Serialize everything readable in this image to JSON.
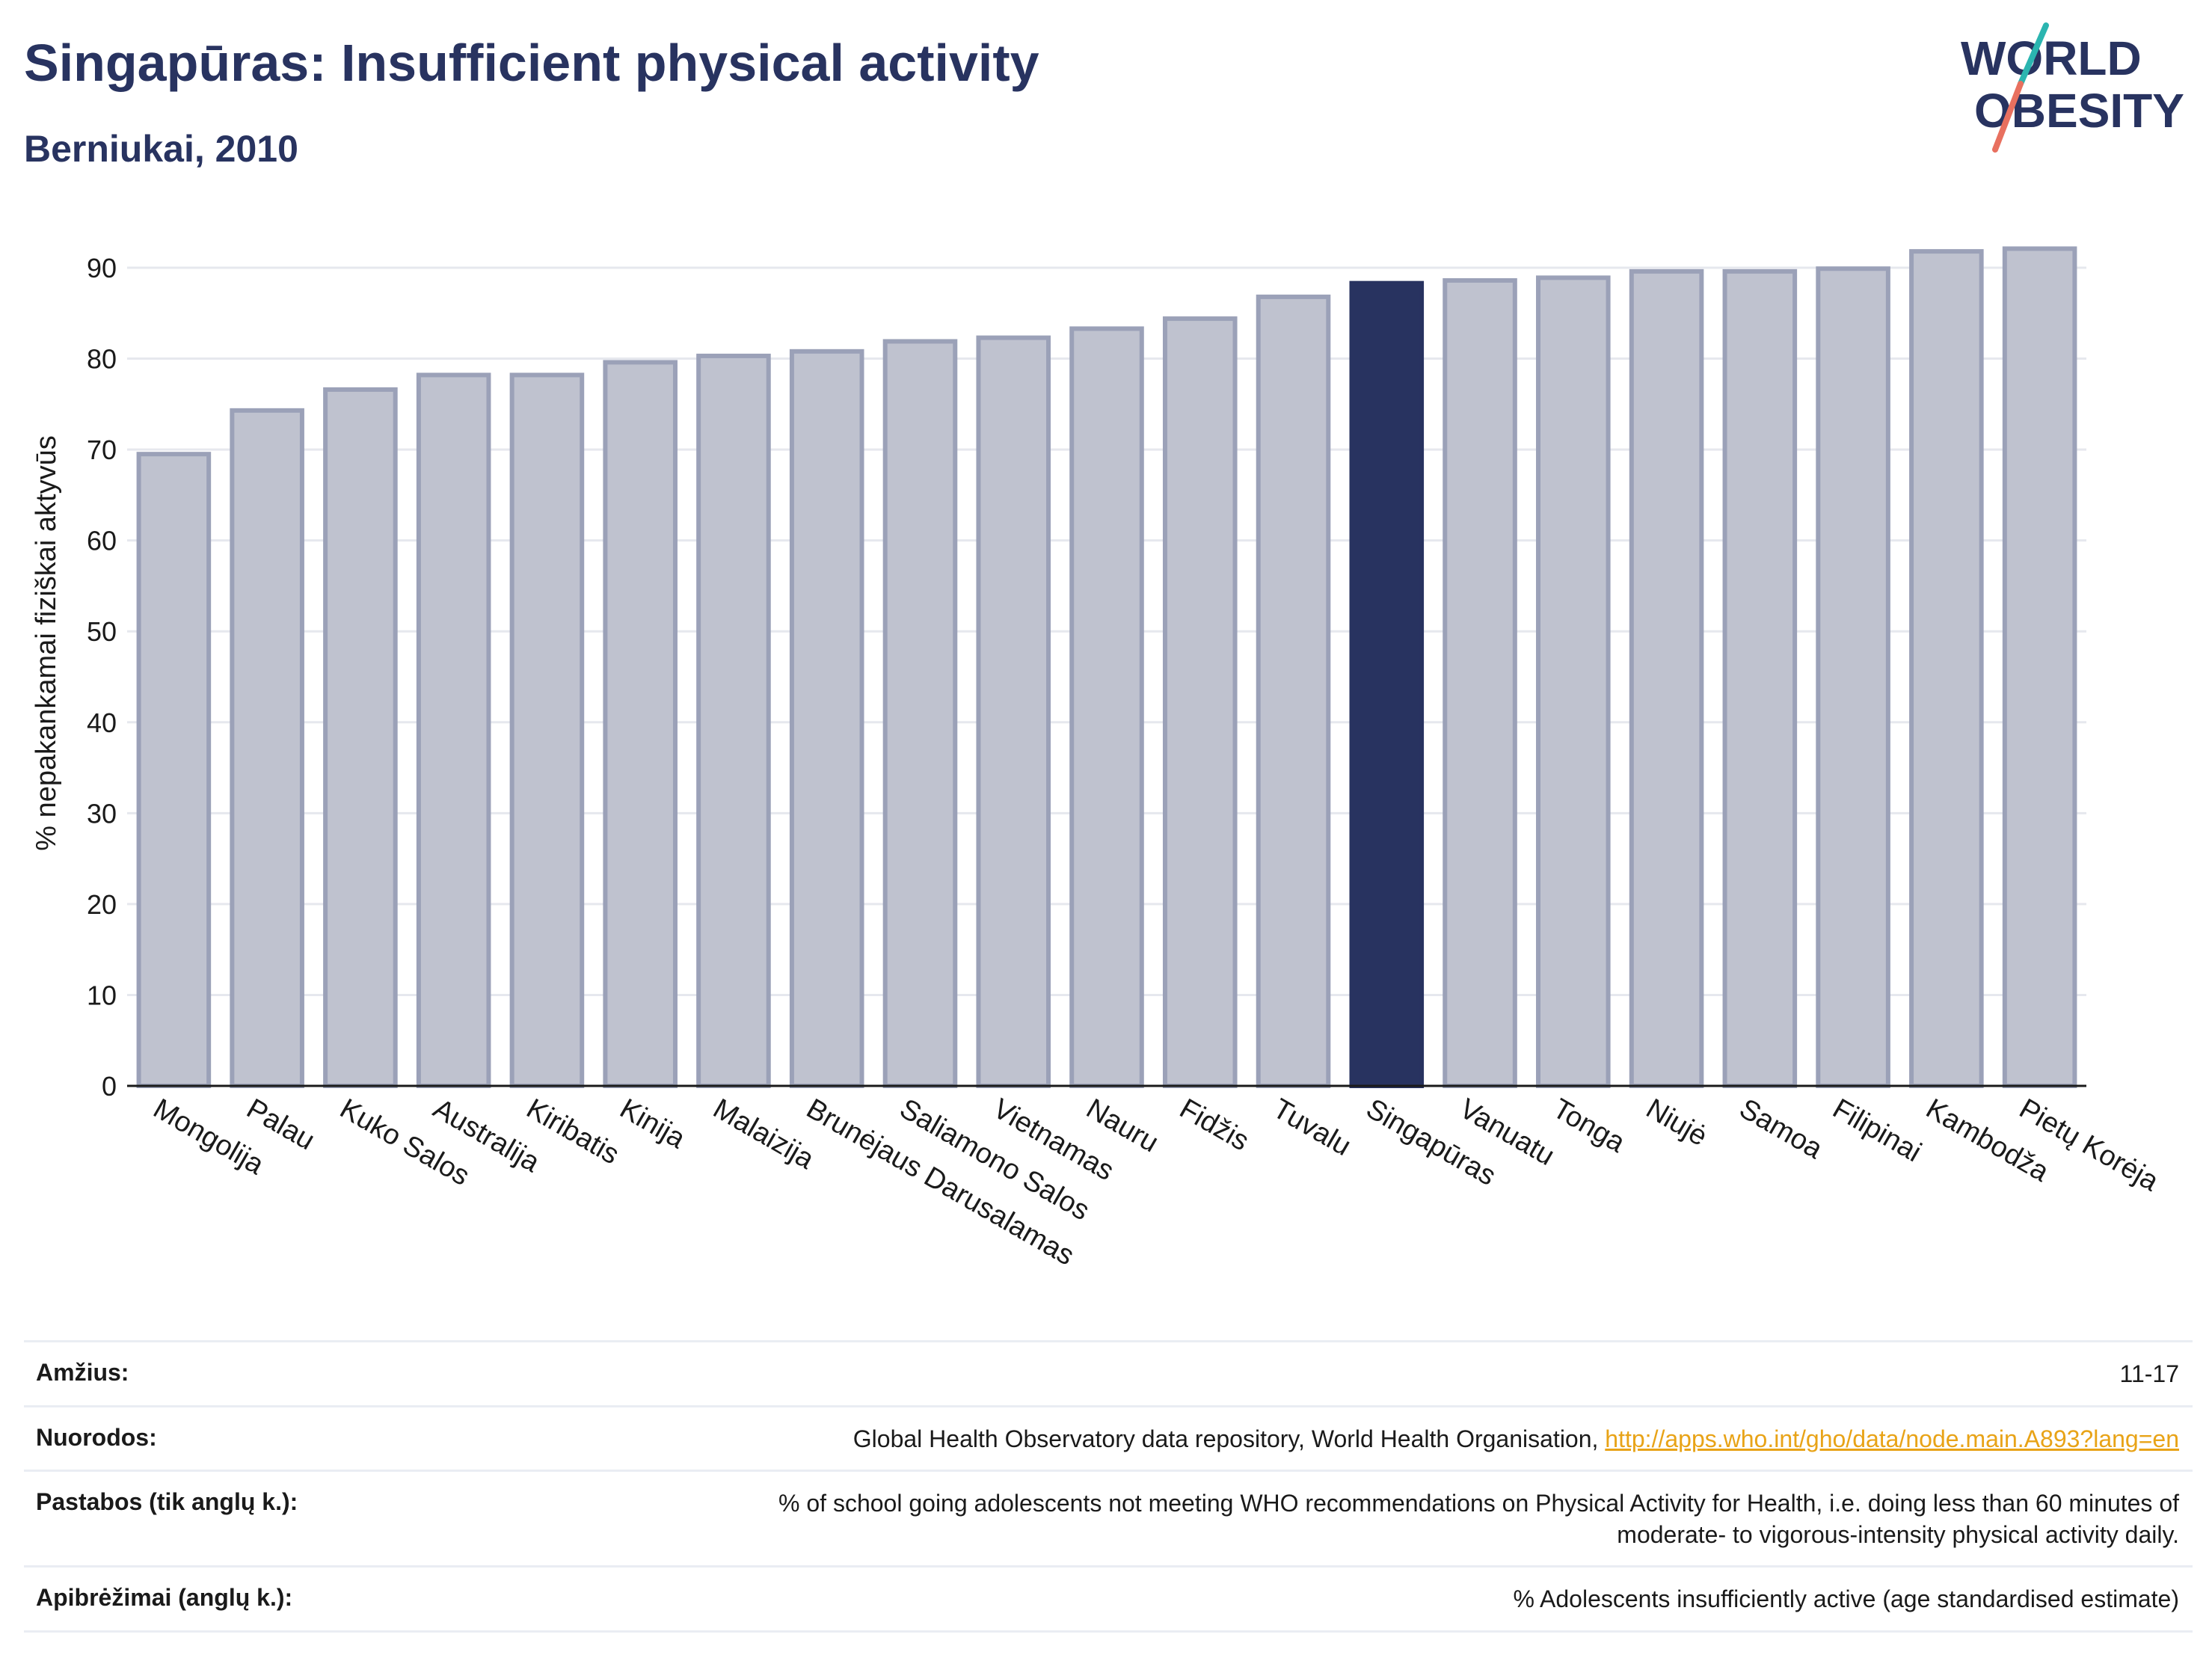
{
  "header": {
    "title": "Singapūras: Insufficient physical activity",
    "subtitle": "Berniukai, 2010"
  },
  "logo": {
    "line1": "WORLD",
    "line2": "OBESITY",
    "accent_teal": "#2bb5b0",
    "accent_coral": "#e8705f",
    "text_color": "#283360"
  },
  "colors": {
    "bar": "#bfc2cf",
    "bar_stroke": "#9ba1b8",
    "highlight": "#283360",
    "grid": "#e6e8ee",
    "axis": "#1a1a1a"
  },
  "chart_data": {
    "type": "bar",
    "title": "Singapūras: Insufficient physical activity",
    "subtitle": "Berniukai, 2010",
    "xlabel": "",
    "ylabel": "% nepakankamai fiziškai aktyvūs",
    "ylim": [
      0,
      93
    ],
    "yticks": [
      0,
      10,
      20,
      30,
      40,
      50,
      60,
      70,
      80,
      90
    ],
    "grid": true,
    "highlight": "Singapūras",
    "categories": [
      "Mongolija",
      "Palau",
      "Kuko Salos",
      "Australija",
      "Kiribatis",
      "Kinija",
      "Malaizija",
      "Brunėjaus Darusalamas",
      "Saliamono Salos",
      "Vietnamas",
      "Nauru",
      "Fidžis",
      "Tuvalu",
      "Singapūras",
      "Vanuatu",
      "Tonga",
      "Niujė",
      "Samoa",
      "Filipinai",
      "Kambodža",
      "Pietų Korėja"
    ],
    "values": [
      69.5,
      74.3,
      76.6,
      78.2,
      78.2,
      79.6,
      80.3,
      80.8,
      81.9,
      82.3,
      83.3,
      84.4,
      86.8,
      88.3,
      88.6,
      88.9,
      89.6,
      89.6,
      89.9,
      91.8,
      92.1
    ]
  },
  "meta": [
    {
      "label": "Amžius:",
      "value": "11-17"
    },
    {
      "label": "Nuorodos:",
      "value": "Global Health Observatory data repository, World Health Organisation,",
      "link": "http://apps.who.int/gho/data/node.main.A893?lang=en"
    },
    {
      "label": "Pastabos (tik anglų k.):",
      "value": "% of school going adolescents not meeting WHO recommendations on Physical Activity for Health, i.e. doing less than 60 minutes of",
      "value2": "moderate- to vigorous-intensity physical activity daily."
    },
    {
      "label": "Apibrėžimai (anglų k.):",
      "value": "% Adolescents insufficiently active (age standardised estimate)"
    }
  ]
}
